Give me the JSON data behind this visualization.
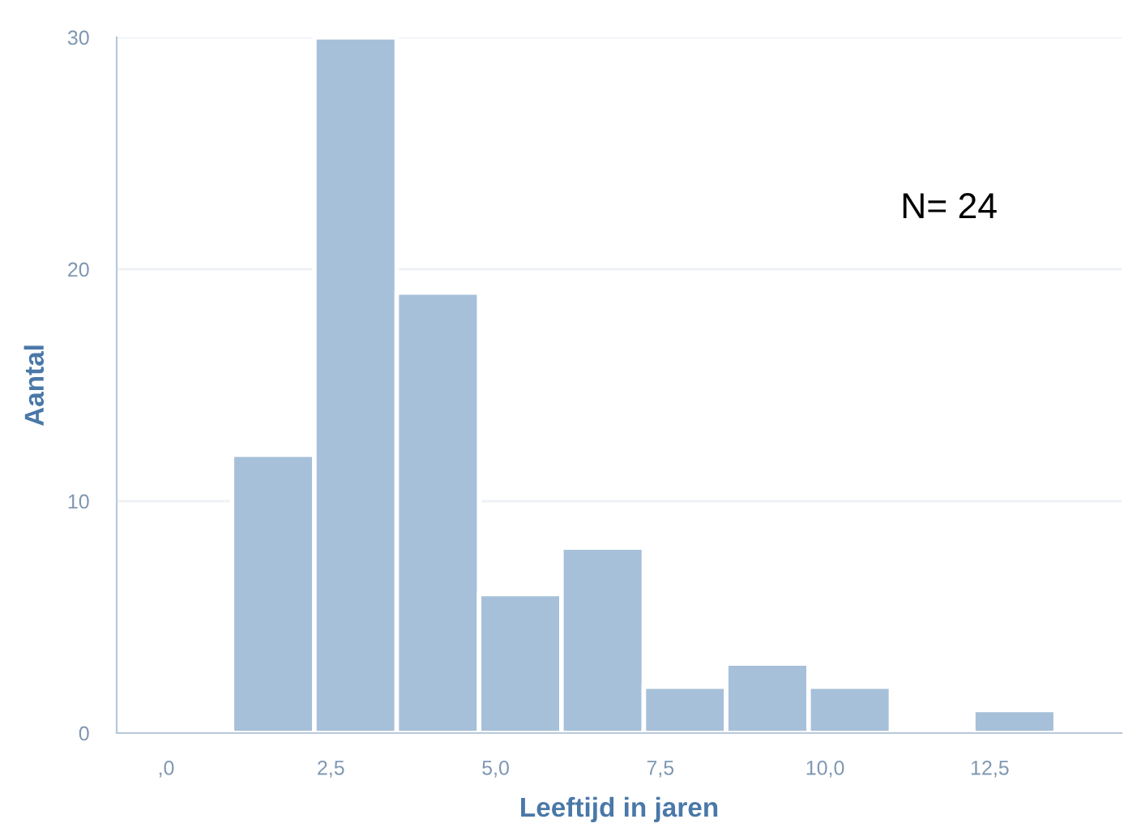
{
  "chart_data": {
    "type": "histogram",
    "xlabel": "Leeftijd in jaren",
    "ylabel": "Aantal",
    "bins": [
      1.0,
      2.25,
      3.5,
      4.75,
      6.0,
      7.25,
      8.5,
      9.75,
      11.0,
      12.25,
      13.5
    ],
    "values": [
      12,
      30,
      19,
      6,
      8,
      2,
      3,
      2,
      0,
      1
    ],
    "color": "#a7c0d9",
    "xlim": [
      -0.75,
      14.5
    ],
    "ylim": [
      0,
      30
    ],
    "xticks": [
      {
        "value": 0,
        "label": ",0"
      },
      {
        "value": 2.5,
        "label": "2,5"
      },
      {
        "value": 5,
        "label": "5,0"
      },
      {
        "value": 7.5,
        "label": "7,5"
      },
      {
        "value": 10,
        "label": "10,0"
      },
      {
        "value": 12.5,
        "label": "12,5"
      }
    ],
    "yticks": [
      0,
      10,
      20,
      30
    ],
    "grid": "y",
    "annotations": [
      "N= 24"
    ]
  }
}
